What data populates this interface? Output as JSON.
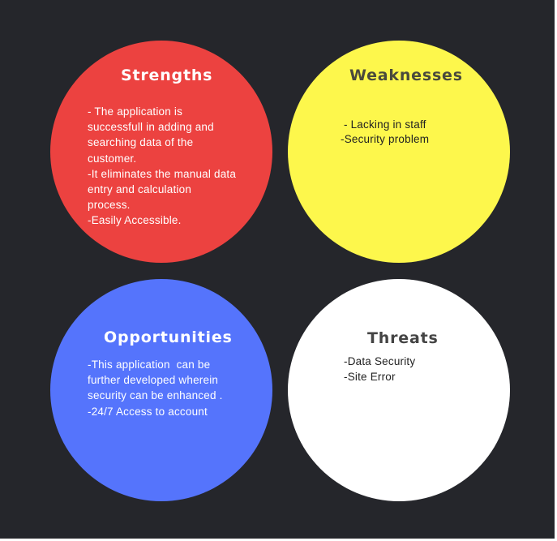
{
  "swot": {
    "strengths": {
      "title": "Strengths",
      "lines": [
        "- The application is",
        "successfull in adding and",
        "searching data of the",
        "customer.",
        "-It eliminates the manual data",
        "entry and calculation",
        "process.",
        "-Easily Accessible."
      ]
    },
    "weaknesses": {
      "title": "Weaknesses",
      "lines": [
        " - Lacking in staff",
        "-Security problem"
      ]
    },
    "opportunities": {
      "title": "Opportunities",
      "lines": [
        "-This application  can be",
        "further developed wherein",
        "security can be enhanced .",
        "-24/7 Access to account"
      ]
    },
    "threats": {
      "title": "Threats",
      "lines": [
        "-Data Security",
        "-Site Error"
      ]
    }
  },
  "colors": {
    "background": "#25262b",
    "strengths": "#ec4240",
    "weaknesses": "#fdf74c",
    "opportunities": "#5574fc",
    "threats": "#ffffff"
  }
}
